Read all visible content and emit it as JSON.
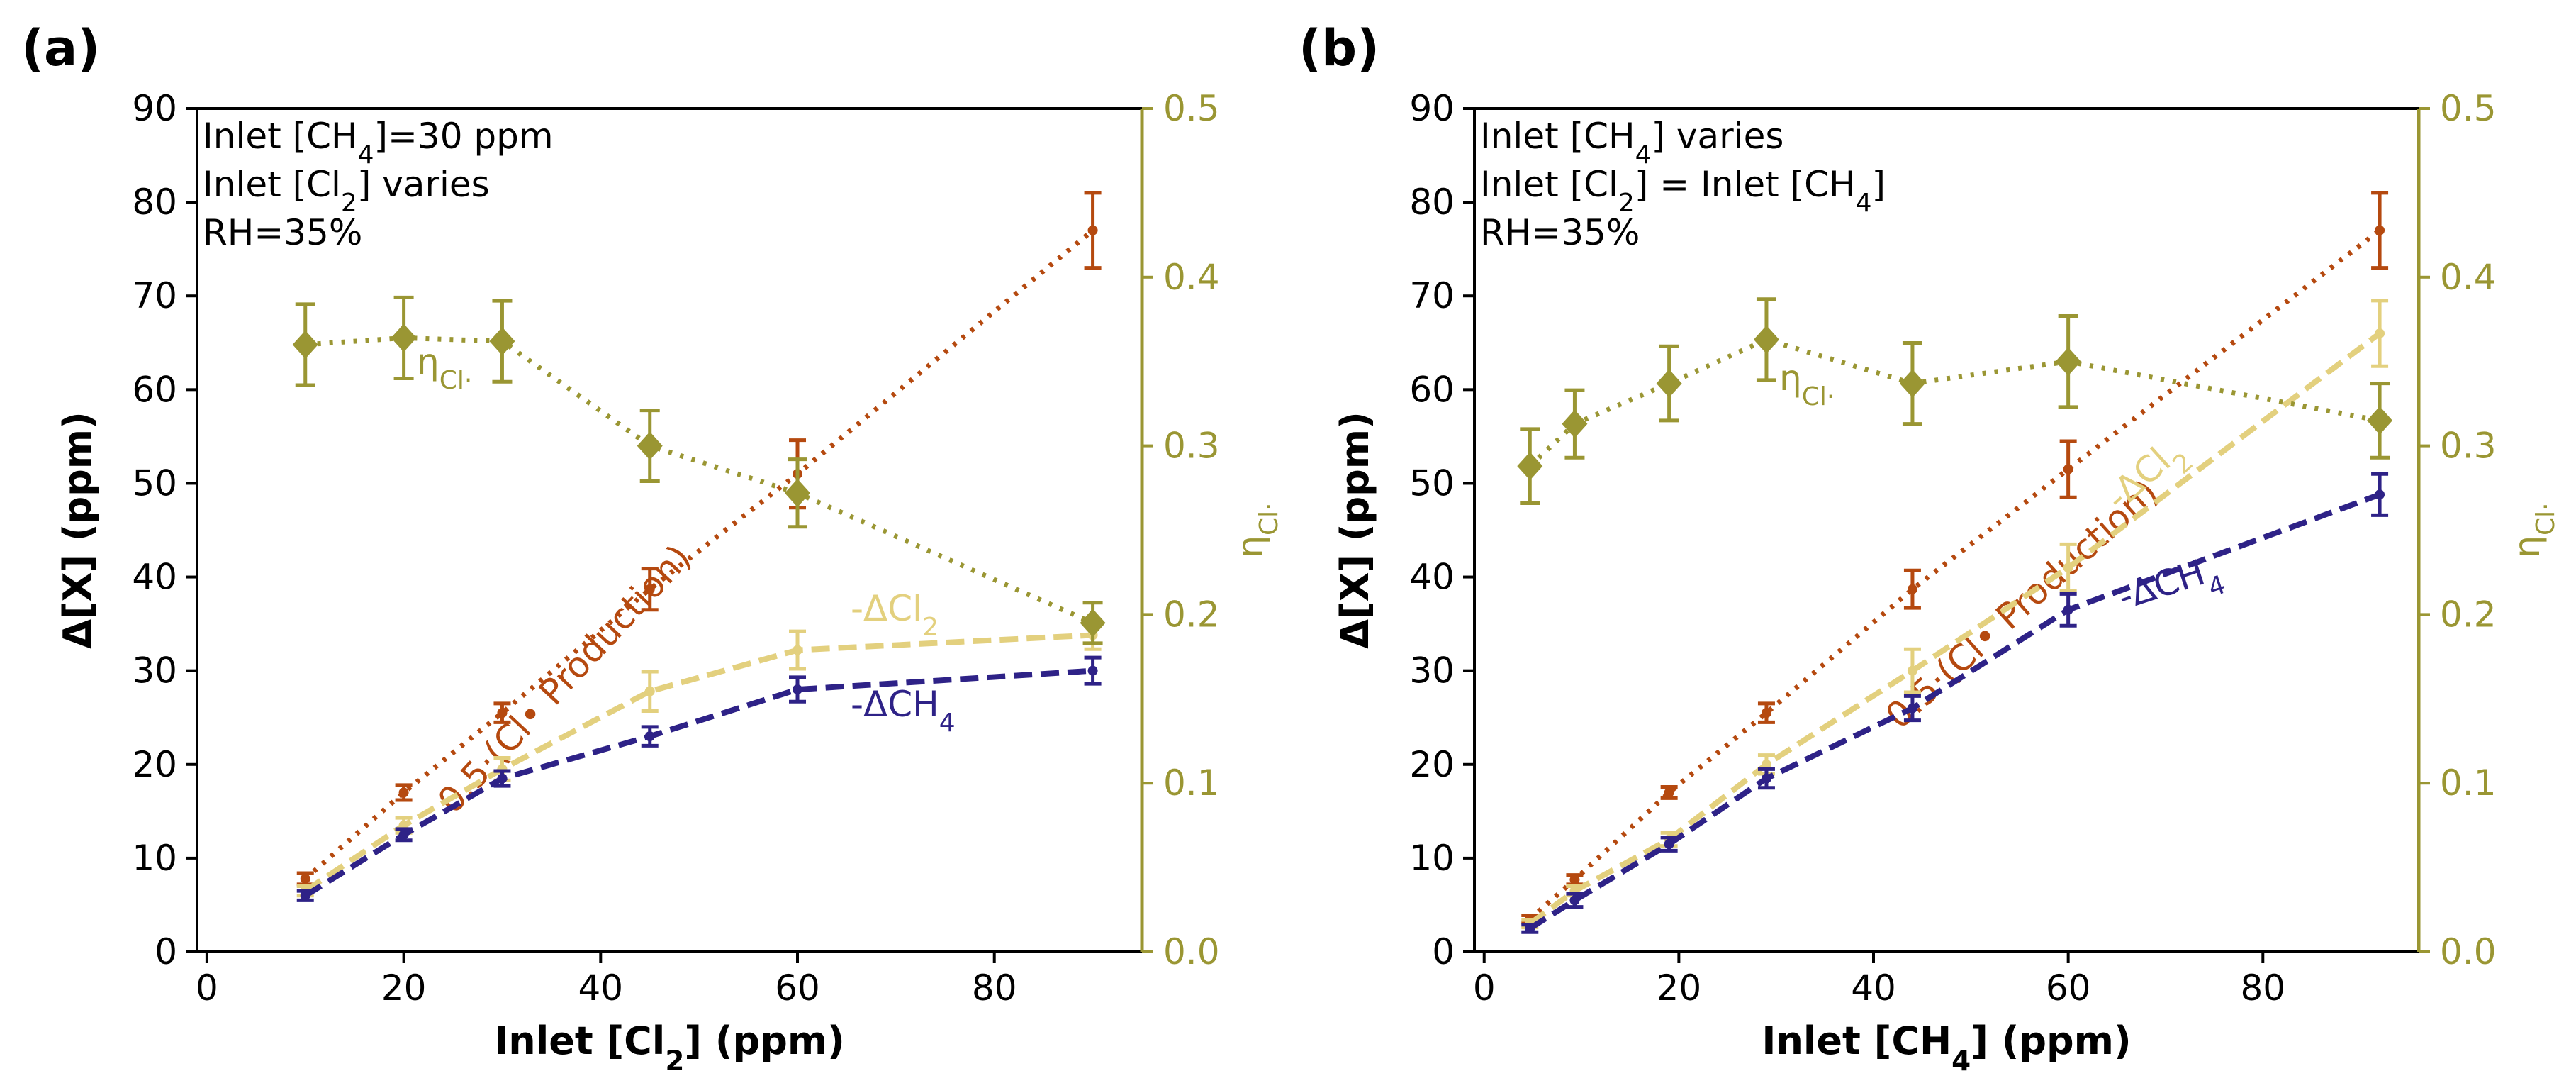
{
  "colors": {
    "production": "#b5490f",
    "dcl2": "#e3d07e",
    "dch4": "#2e2287",
    "eta": "#9a9633",
    "eta_axis": "#9a9633"
  },
  "chart_data": [
    {
      "type": "line",
      "panel_label": "(a)",
      "xlabel": "Inlet [Cl₂] (ppm)",
      "ylabel": "Δ[X] (ppm)",
      "ylabel_right": "ηCl·",
      "xlim": [
        -1,
        95
      ],
      "ylim": [
        0,
        90
      ],
      "ylim_right": [
        0,
        0.5
      ],
      "xticks": [
        "0",
        "20",
        "40",
        "60",
        "80"
      ],
      "yticks": [
        "0",
        "10",
        "20",
        "30",
        "40",
        "50",
        "60",
        "70",
        "80",
        "90"
      ],
      "yticks_right": [
        "0.0",
        "0.1",
        "0.2",
        "0.3",
        "0.4",
        "0.5"
      ],
      "annotations": [
        "Inlet [CH₄]=30 ppm",
        "Inlet [Cl₂] varies",
        "RH=35%"
      ],
      "series": [
        {
          "name": "0.5·(Cl• Production)",
          "axis": "left",
          "x": [
            10,
            20,
            30,
            45,
            60,
            90
          ],
          "y": [
            7.8,
            17,
            25.5,
            38.7,
            51,
            77
          ],
          "err": [
            0.6,
            0.8,
            1,
            2.2,
            3.6,
            4
          ]
        },
        {
          "name": "-ΔCl₂",
          "axis": "left",
          "x": [
            10,
            20,
            30,
            45,
            60,
            90
          ],
          "y": [
            6.5,
            13.5,
            19.5,
            27.8,
            32.2,
            33.8
          ],
          "err": [
            0.5,
            0.8,
            1.2,
            2.1,
            2,
            1.5
          ]
        },
        {
          "name": "-ΔCH₄",
          "axis": "left",
          "x": [
            10,
            20,
            30,
            45,
            60,
            90
          ],
          "y": [
            6,
            12.5,
            18.5,
            23,
            28,
            30
          ],
          "err": [
            0.5,
            0.6,
            0.8,
            1,
            1.3,
            1.4
          ]
        },
        {
          "name": "ηCl·",
          "axis": "right",
          "x": [
            10,
            20,
            30,
            45,
            60,
            90
          ],
          "y": [
            0.36,
            0.364,
            0.362,
            0.3,
            0.272,
            0.195
          ],
          "err": [
            0.024,
            0.024,
            0.024,
            0.021,
            0.02,
            0.012
          ]
        }
      ]
    },
    {
      "type": "line",
      "panel_label": "(b)",
      "xlabel": "Inlet [CH₄] (ppm)",
      "ylabel": "Δ[X] (ppm)",
      "ylabel_right": "ηCl·",
      "xlim": [
        -1,
        96
      ],
      "ylim": [
        0,
        90
      ],
      "ylim_right": [
        0,
        0.5
      ],
      "xticks": [
        "0",
        "20",
        "40",
        "60",
        "80"
      ],
      "yticks": [
        "0",
        "10",
        "20",
        "30",
        "40",
        "50",
        "60",
        "70",
        "80",
        "90"
      ],
      "yticks_right": [
        "0.0",
        "0.1",
        "0.2",
        "0.3",
        "0.4",
        "0.5"
      ],
      "annotations": [
        "Inlet [CH₄] varies",
        "Inlet [Cl₂] = Inlet [CH₄]",
        "RH=35%"
      ],
      "series": [
        {
          "name": "0.5·(Cl• Production)",
          "axis": "left",
          "x": [
            4.7,
            9.3,
            19,
            29,
            44,
            60,
            92
          ],
          "y": [
            3.5,
            7.7,
            17,
            25.5,
            38.7,
            51.5,
            77
          ],
          "err": [
            0.4,
            0.5,
            0.6,
            1,
            2,
            3,
            4
          ]
        },
        {
          "name": "-ΔCl₂",
          "axis": "left",
          "x": [
            4.7,
            9.3,
            19,
            29,
            44,
            60,
            92
          ],
          "y": [
            3,
            6.5,
            12,
            20,
            30,
            41,
            66
          ],
          "err": [
            0.4,
            0.5,
            0.7,
            1,
            2.3,
            2.5,
            3.5
          ]
        },
        {
          "name": "-ΔCH₄",
          "axis": "left",
          "x": [
            4.7,
            9.3,
            19,
            29,
            44,
            60,
            92
          ],
          "y": [
            2.5,
            5.5,
            11.5,
            18.5,
            26,
            36.5,
            48.8
          ],
          "err": [
            0.4,
            0.7,
            0.7,
            1,
            1.3,
            1.7,
            2.2
          ]
        },
        {
          "name": "ηCl·",
          "axis": "right",
          "x": [
            4.7,
            9.3,
            19,
            29,
            44,
            60,
            92
          ],
          "y": [
            0.288,
            0.313,
            0.337,
            0.363,
            0.337,
            0.35,
            0.315
          ],
          "err": [
            0.022,
            0.02,
            0.022,
            0.024,
            0.024,
            0.027,
            0.022
          ]
        }
      ]
    }
  ]
}
